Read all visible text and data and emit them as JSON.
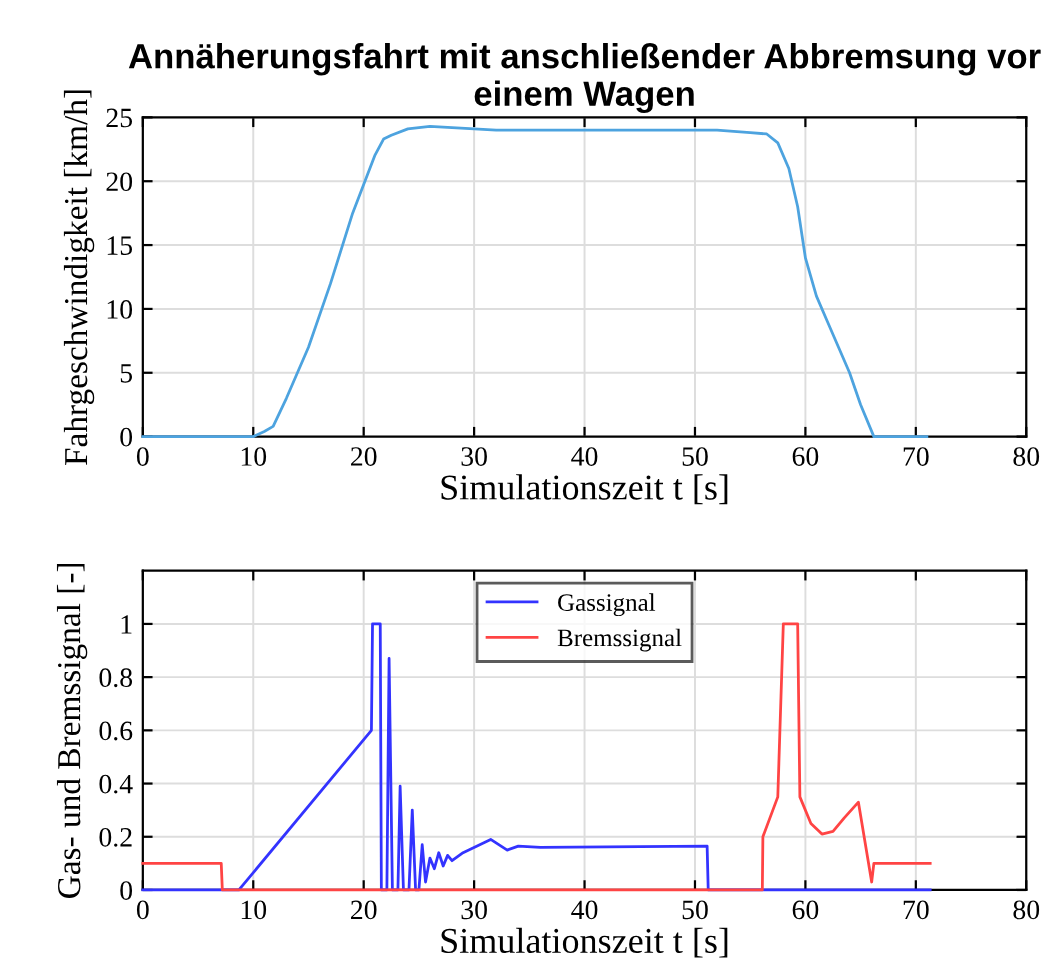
{
  "chart_data": [
    {
      "type": "line",
      "title": "Annäherungsfahrt mit anschließender Abbremsung vor einem Wagen",
      "xlabel": "Simulationszeit t [s]",
      "ylabel": "Fahrgeschwindigkeit [km/h]",
      "series": [
        {
          "color": "#4da3df",
          "x": [
            0,
            10,
            11,
            11.8,
            13,
            15,
            17,
            19,
            21,
            21.8,
            22.5,
            24,
            26,
            30,
            32,
            40,
            50,
            52,
            55,
            56.5,
            57.5,
            58.5,
            59.3,
            60,
            61,
            62,
            63,
            64,
            65,
            66.2,
            67,
            71
          ],
          "values": [
            0,
            0,
            0.4,
            0.8,
            3,
            7,
            12,
            17.5,
            22,
            23.3,
            23.6,
            24.1,
            24.3,
            24.1,
            24,
            24,
            24,
            24,
            23.8,
            23.7,
            23,
            21,
            18,
            14,
            11,
            9,
            7,
            5,
            2.5,
            0,
            0,
            0
          ]
        }
      ],
      "xlim": [
        0,
        80
      ],
      "xticks": [
        0,
        10,
        20,
        30,
        40,
        50,
        60,
        70,
        80
      ],
      "ylim": [
        0,
        25
      ],
      "yticks": [
        0,
        5,
        10,
        15,
        20,
        25
      ],
      "grid": true
    },
    {
      "type": "line",
      "xlabel": "Simulationszeit t [s]",
      "ylabel": "Gas- und Bremssignal [-]",
      "series": [
        {
          "name": "Gassignal",
          "color": "#3333ff",
          "x": [
            0,
            8.7,
            20.7,
            20.8,
            21.5,
            21.6,
            22.1,
            22.3,
            22.6,
            23.1,
            23.3,
            23.6,
            24.1,
            24.4,
            24.7,
            25.0,
            25.3,
            25.6,
            26,
            26.4,
            26.8,
            27.2,
            27.6,
            28,
            29,
            31.5,
            33,
            34,
            36,
            51.1,
            51.2,
            71.3
          ],
          "values": [
            0,
            0,
            0.6,
            1,
            1,
            0,
            0,
            0.87,
            0,
            0,
            0.39,
            0,
            0,
            0.3,
            0,
            0,
            0.17,
            0.03,
            0.12,
            0.08,
            0.14,
            0.09,
            0.13,
            0.11,
            0.14,
            0.19,
            0.15,
            0.165,
            0.16,
            0.165,
            0,
            0
          ]
        },
        {
          "name": "Bremssignal",
          "color": "#ff4444",
          "x": [
            0,
            7.1,
            7.2,
            56.1,
            56.15,
            57.5,
            58,
            59.3,
            59.5,
            60.5,
            61.5,
            62.5,
            63.5,
            64.8,
            66,
            66.2,
            71.3
          ],
          "values": [
            0.1,
            0.1,
            0,
            0,
            0.2,
            0.35,
            1,
            1,
            0.35,
            0.25,
            0.21,
            0.22,
            0.27,
            0.33,
            0.03,
            0.1,
            0.1
          ]
        }
      ],
      "xlim": [
        0,
        80
      ],
      "xticks": [
        0,
        10,
        20,
        30,
        40,
        50,
        60,
        70,
        80
      ],
      "ylim": [
        0,
        1.2
      ],
      "yticks": [
        0,
        0.2,
        0.4,
        0.6,
        0.8,
        1
      ],
      "grid": true,
      "legend": "top"
    }
  ]
}
